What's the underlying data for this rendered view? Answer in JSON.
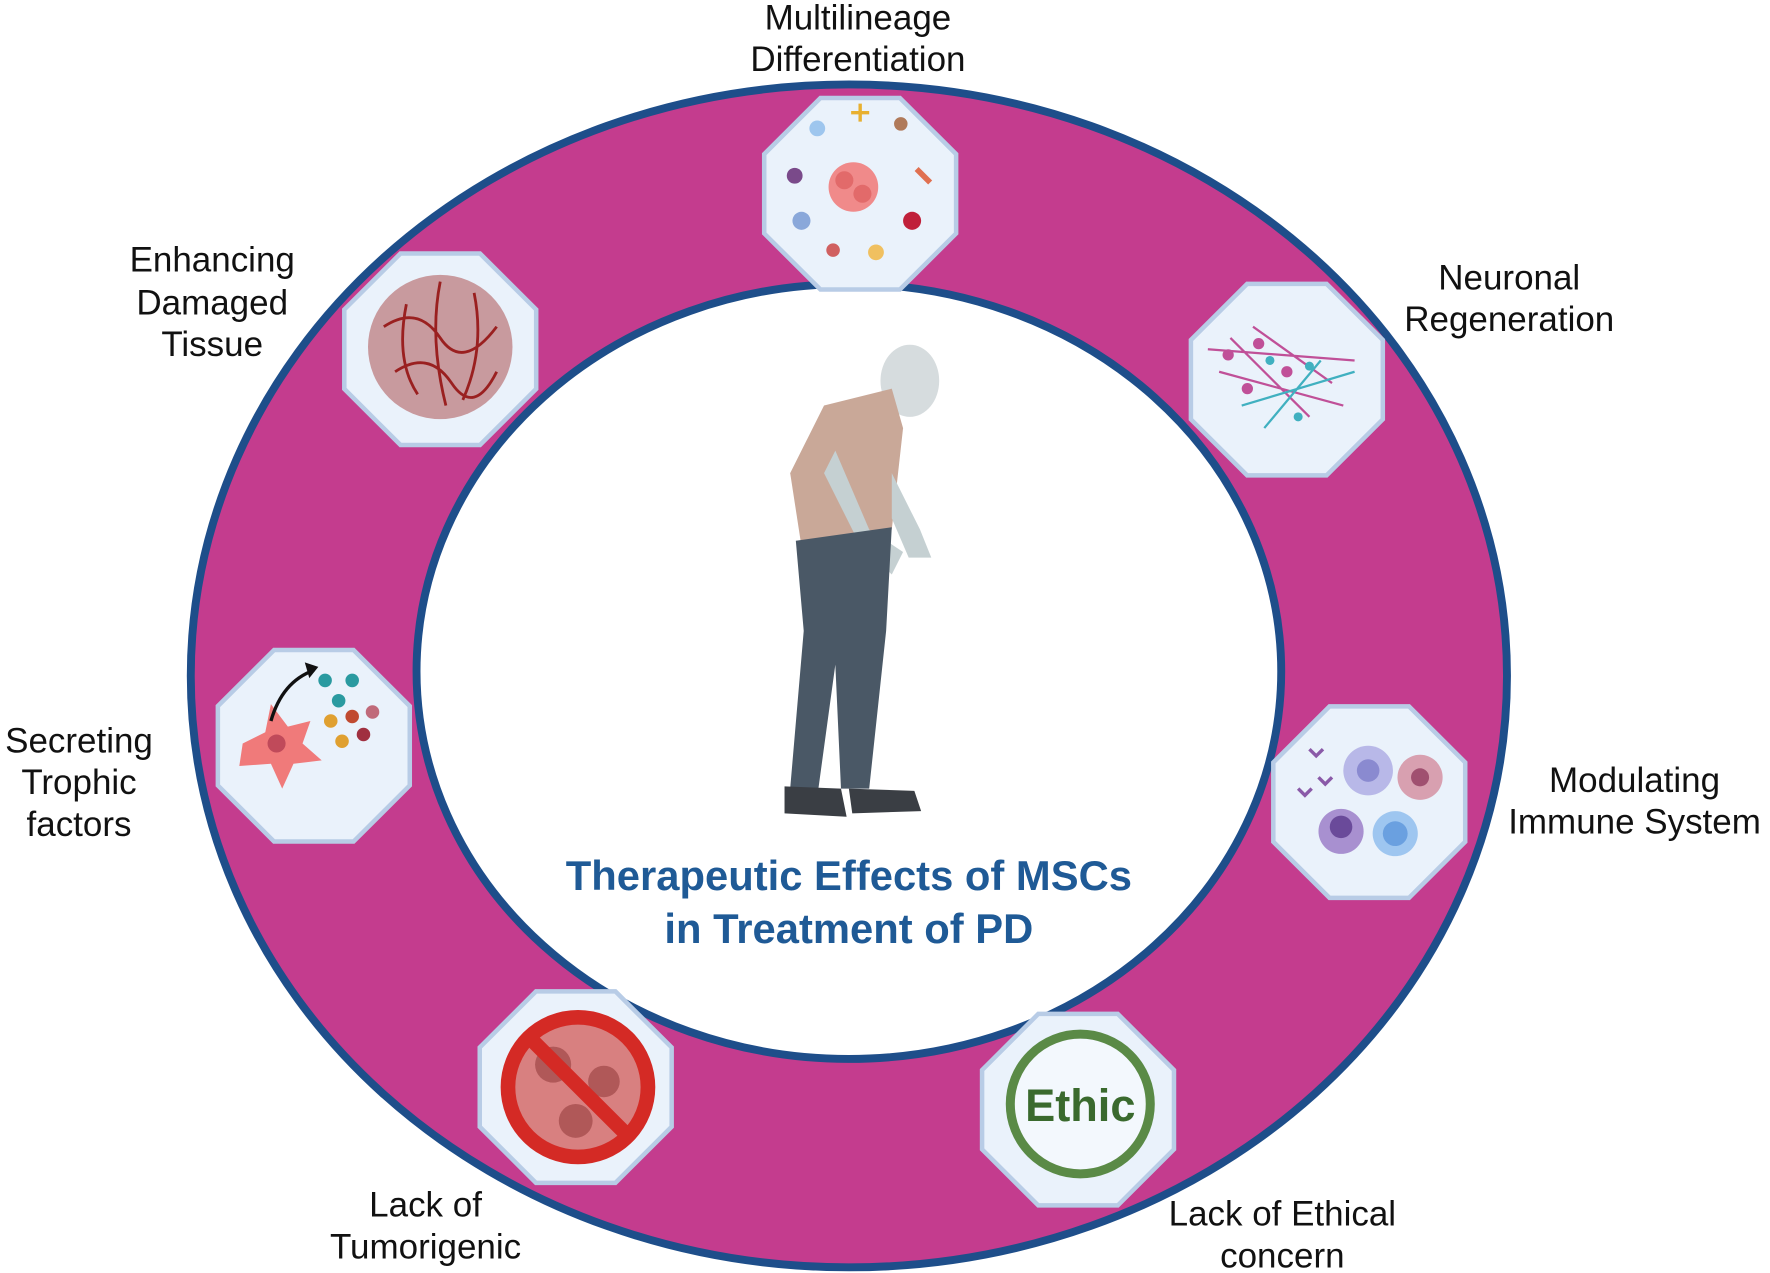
{
  "title": {
    "line1": "Therapeutic Effects of MSCs",
    "line2": "in Treatment of PD"
  },
  "items": [
    {
      "lines": [
        "Multilineage",
        "Differentiation"
      ],
      "icon": "cell-differentiation-icon"
    },
    {
      "lines": [
        "Neuronal",
        "Regeneration"
      ],
      "icon": "neurons-icon"
    },
    {
      "lines": [
        "Modulating",
        "Immune System"
      ],
      "icon": "immune-cells-icon"
    },
    {
      "lines": [
        "Lack of Ethical",
        "concern"
      ],
      "icon": "ethic-badge-icon",
      "badge": "Ethic"
    },
    {
      "lines": [
        "Lack of",
        "Tumorigenic"
      ],
      "icon": "no-tumor-icon"
    },
    {
      "lines": [
        "Secreting",
        "Trophic",
        "factors"
      ],
      "icon": "secreting-cell-icon"
    },
    {
      "lines": [
        "Enhancing",
        "Damaged",
        "Tissue"
      ],
      "icon": "brain-icon"
    }
  ],
  "colors": {
    "ring": "#C43C8E",
    "ring_border": "#1E4E8A",
    "title": "#1F5A96",
    "octagon_fill": "#EAF2FB",
    "octagon_border": "#B8CCE6",
    "ethic": "#5A8A46",
    "forbidden": "#D42A25"
  }
}
